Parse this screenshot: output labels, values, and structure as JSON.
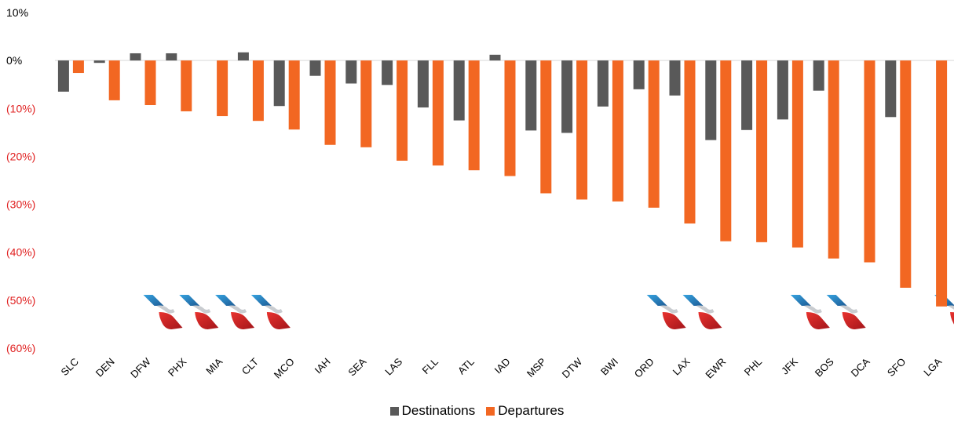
{
  "chart_data": {
    "type": "bar",
    "categories": [
      "SLC",
      "DEN",
      "DFW",
      "PHX",
      "MIA",
      "CLT",
      "MCO",
      "IAH",
      "SEA",
      "LAS",
      "FLL",
      "ATL",
      "IAD",
      "MSP",
      "DTW",
      "BWI",
      "ORD",
      "LAX",
      "EWR",
      "PHL",
      "JFK",
      "BOS",
      "DCA",
      "SFO",
      "LGA"
    ],
    "series": [
      {
        "name": "Destinations",
        "color": "#595959",
        "values": [
          -6.5,
          -0.5,
          1.5,
          1.5,
          0,
          1.7,
          -9.5,
          -3.2,
          -4.8,
          -5.1,
          -9.8,
          -12.5,
          1.2,
          -14.6,
          -15.1,
          -9.6,
          -6.0,
          -7.3,
          -16.6,
          -14.5,
          -12.3,
          -6.3,
          0,
          -11.8,
          0
        ]
      },
      {
        "name": "Departures",
        "color": "#F26722",
        "values": [
          -2.6,
          -8.3,
          -9.3,
          -10.6,
          -11.6,
          -12.6,
          -14.4,
          -17.6,
          -18.1,
          -20.9,
          -21.9,
          -22.9,
          -24.1,
          -27.7,
          -29.0,
          -29.4,
          -30.7,
          -34.0,
          -37.7,
          -37.9,
          -39.0,
          -41.3,
          -42.1,
          -47.4,
          -51.3
        ]
      }
    ],
    "ylim": [
      -60,
      10
    ],
    "yticks": [
      10,
      0,
      -10,
      -20,
      -30,
      -40,
      -50,
      -60
    ],
    "ytick_labels": [
      "10%",
      "0%",
      "(10%)",
      "(20%)",
      "(30%)",
      "(40%)",
      "(50%)",
      "(60%)"
    ],
    "ytick_colors": [
      "#000000",
      "#000000",
      "#E02020",
      "#E02020",
      "#E02020",
      "#E02020",
      "#E02020",
      "#E02020"
    ],
    "legend_position": "bottom",
    "logo_categories": [
      "DFW",
      "PHX",
      "MIA",
      "CLT",
      "ORD",
      "LAX",
      "JFK",
      "BOS",
      "LGA"
    ],
    "logo_icon": "american-airlines-tail-icon"
  }
}
